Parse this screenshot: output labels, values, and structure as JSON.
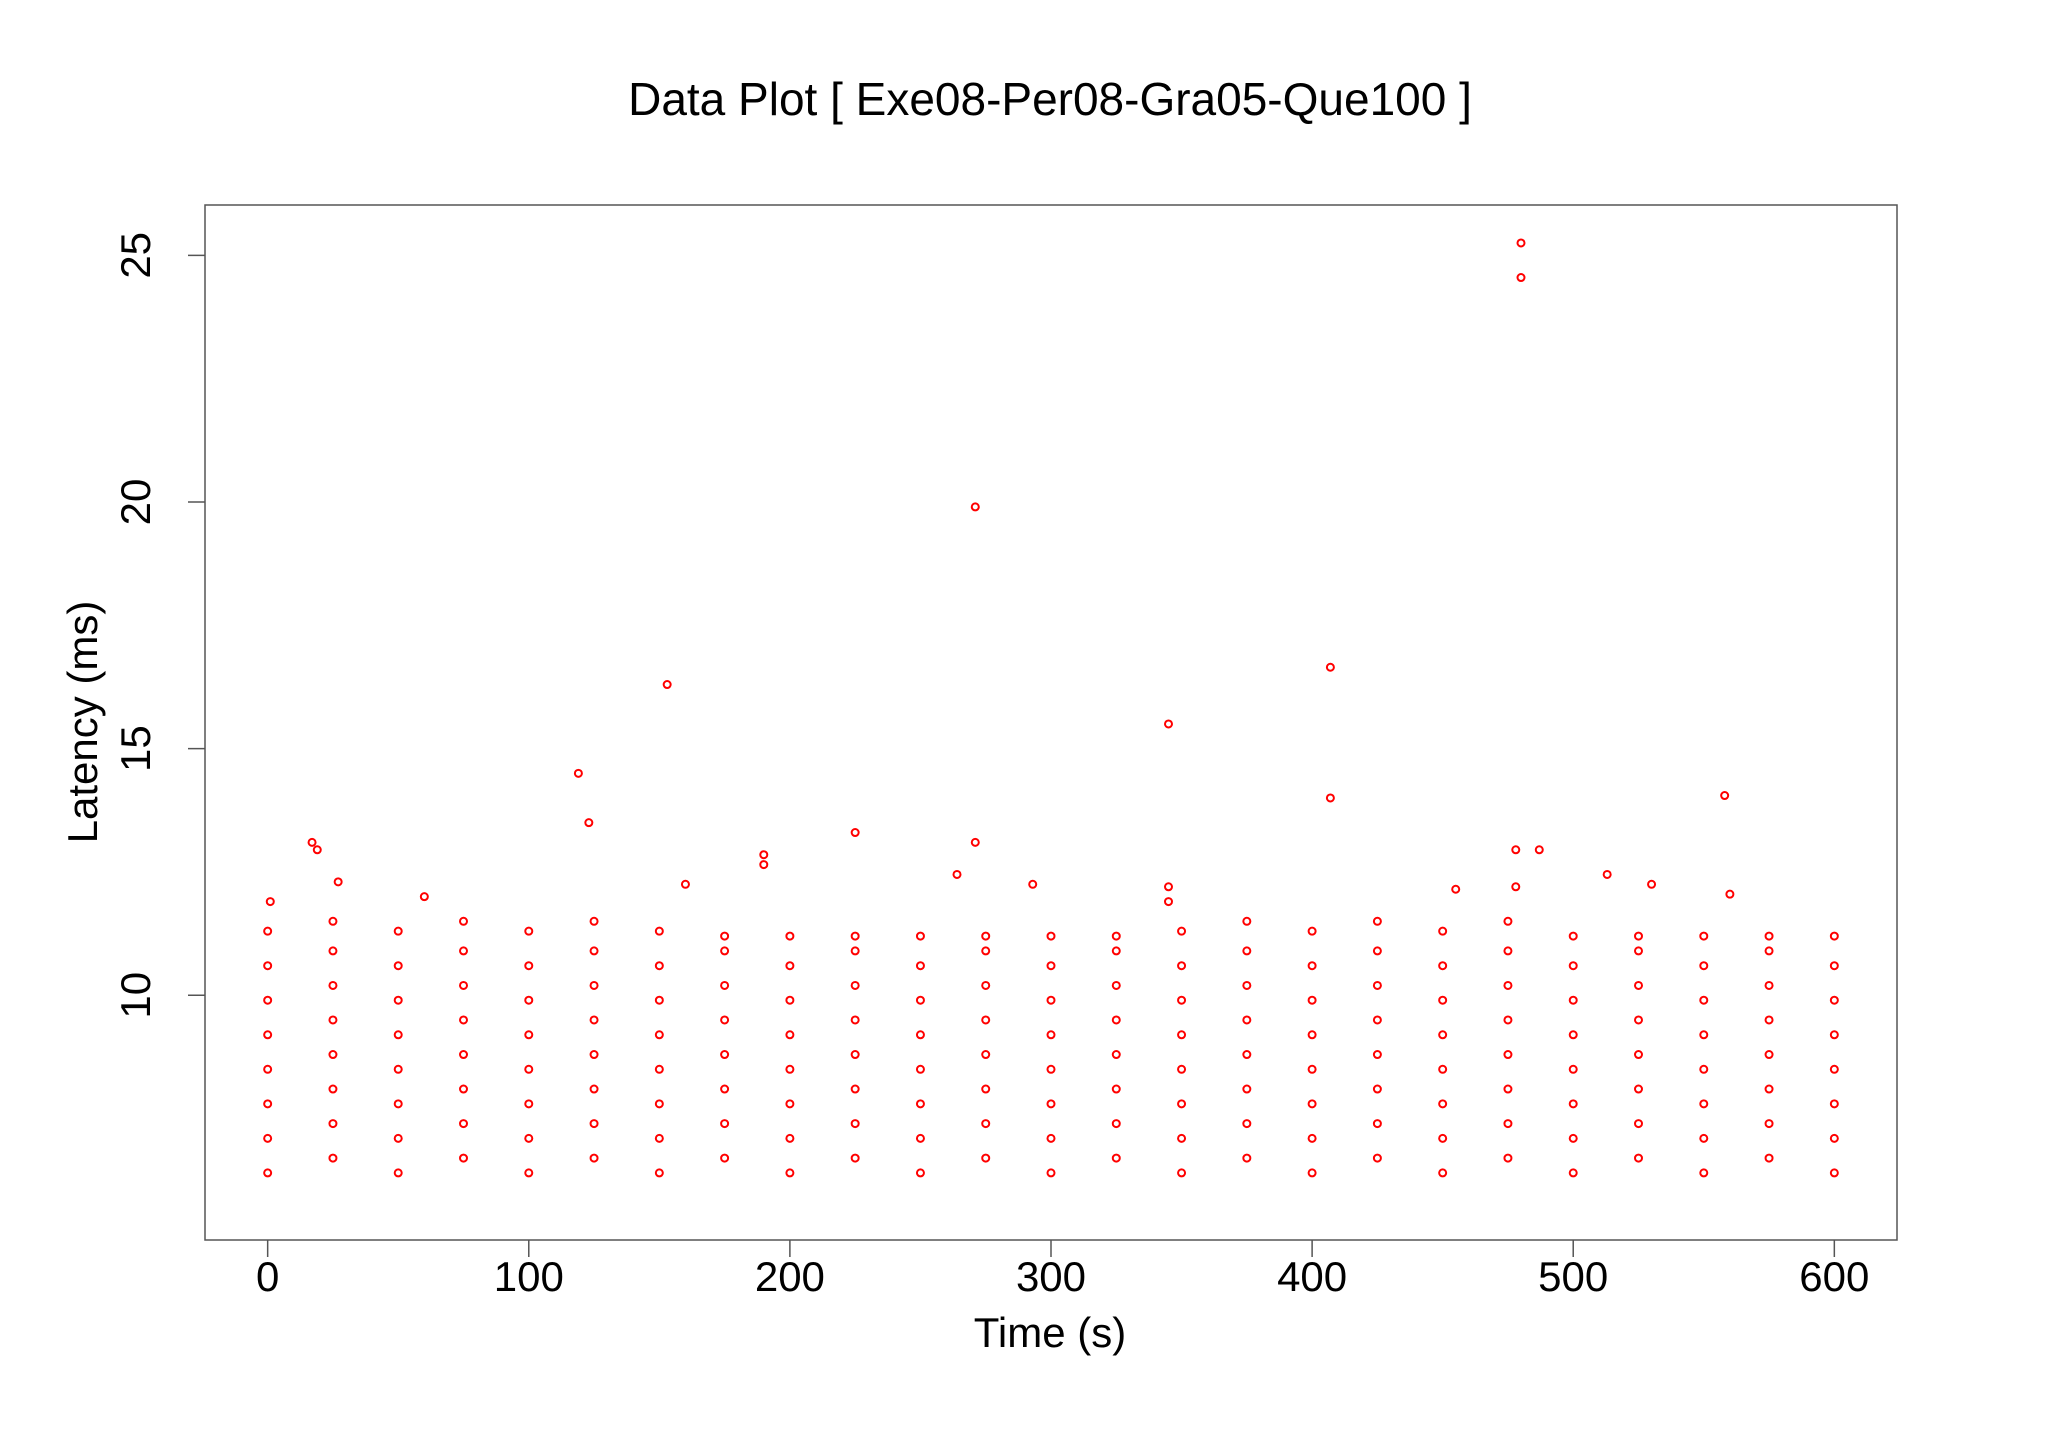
{
  "chart_data": {
    "type": "scatter",
    "title": "Data Plot [ Exe08-Per08-Gra05-Que100 ]",
    "x_label": "Time (s)",
    "y_label": "Latency (ms)",
    "color": "#ff0000",
    "xlim": [
      -24,
      624
    ],
    "ylim": [
      5.04,
      26.02
    ],
    "xticks": [
      0,
      100,
      200,
      300,
      400,
      500,
      600
    ],
    "yticks": [
      10,
      15,
      20,
      25
    ],
    "x": [
      0,
      0,
      0,
      0,
      0,
      0,
      0,
      0,
      25,
      25,
      25,
      25,
      25,
      25,
      25,
      25,
      50,
      50,
      50,
      50,
      50,
      50,
      50,
      50,
      75,
      75,
      75,
      75,
      75,
      75,
      75,
      75,
      100,
      100,
      100,
      100,
      100,
      100,
      100,
      100,
      125,
      125,
      125,
      125,
      125,
      125,
      125,
      125,
      150,
      150,
      150,
      150,
      150,
      150,
      150,
      150,
      175,
      175,
      175,
      175,
      175,
      175,
      175,
      175,
      200,
      200,
      200,
      200,
      200,
      200,
      200,
      200,
      225,
      225,
      225,
      225,
      225,
      225,
      225,
      225,
      250,
      250,
      250,
      250,
      250,
      250,
      250,
      250,
      275,
      275,
      275,
      275,
      275,
      275,
      275,
      275,
      300,
      300,
      300,
      300,
      300,
      300,
      300,
      300,
      325,
      325,
      325,
      325,
      325,
      325,
      325,
      325,
      350,
      350,
      350,
      350,
      350,
      350,
      350,
      350,
      375,
      375,
      375,
      375,
      375,
      375,
      375,
      375,
      400,
      400,
      400,
      400,
      400,
      400,
      400,
      400,
      425,
      425,
      425,
      425,
      425,
      425,
      425,
      425,
      450,
      450,
      450,
      450,
      450,
      450,
      450,
      450,
      475,
      475,
      475,
      475,
      475,
      475,
      475,
      475,
      500,
      500,
      500,
      500,
      500,
      500,
      500,
      500,
      525,
      525,
      525,
      525,
      525,
      525,
      525,
      525,
      550,
      550,
      550,
      550,
      550,
      550,
      550,
      550,
      575,
      575,
      575,
      575,
      575,
      575,
      575,
      575,
      600,
      600,
      600,
      600,
      600,
      600,
      600,
      600,
      1,
      17,
      19,
      27,
      60,
      119,
      123,
      153,
      160,
      190,
      190,
      225,
      264,
      271,
      271,
      293,
      345,
      345,
      345,
      407,
      407,
      455,
      478,
      478,
      480,
      480,
      487,
      513,
      530,
      558,
      560
    ],
    "values": [
      6.4,
      7.1,
      7.8,
      8.5,
      9.2,
      9.9,
      10.6,
      11.3,
      6.7,
      7.4,
      8.1,
      8.8,
      9.5,
      10.2,
      10.9,
      11.5,
      6.4,
      7.1,
      7.8,
      8.5,
      9.2,
      9.9,
      10.6,
      11.3,
      6.7,
      7.4,
      8.1,
      8.8,
      9.5,
      10.2,
      10.9,
      11.5,
      6.4,
      7.1,
      7.8,
      8.5,
      9.2,
      9.9,
      10.6,
      11.3,
      6.7,
      7.4,
      8.1,
      8.8,
      9.5,
      10.2,
      10.9,
      11.5,
      6.4,
      7.1,
      7.8,
      8.5,
      9.2,
      9.9,
      10.6,
      11.3,
      6.7,
      7.4,
      8.1,
      8.8,
      9.5,
      10.2,
      10.9,
      11.2,
      6.4,
      7.1,
      7.8,
      8.5,
      9.2,
      9.9,
      10.6,
      11.2,
      6.7,
      7.4,
      8.1,
      8.8,
      9.5,
      10.2,
      10.9,
      11.2,
      6.4,
      7.1,
      7.8,
      8.5,
      9.2,
      9.9,
      10.6,
      11.2,
      6.7,
      7.4,
      8.1,
      8.8,
      9.5,
      10.2,
      10.9,
      11.2,
      6.4,
      7.1,
      7.8,
      8.5,
      9.2,
      9.9,
      10.6,
      11.2,
      6.7,
      7.4,
      8.1,
      8.8,
      9.5,
      10.2,
      10.9,
      11.2,
      6.4,
      7.1,
      7.8,
      8.5,
      9.2,
      9.9,
      10.6,
      11.3,
      6.7,
      7.4,
      8.1,
      8.8,
      9.5,
      10.2,
      10.9,
      11.5,
      6.4,
      7.1,
      7.8,
      8.5,
      9.2,
      9.9,
      10.6,
      11.3,
      6.7,
      7.4,
      8.1,
      8.8,
      9.5,
      10.2,
      10.9,
      11.5,
      6.4,
      7.1,
      7.8,
      8.5,
      9.2,
      9.9,
      10.6,
      11.3,
      6.7,
      7.4,
      8.1,
      8.8,
      9.5,
      10.2,
      10.9,
      11.5,
      6.4,
      7.1,
      7.8,
      8.5,
      9.2,
      9.9,
      10.6,
      11.2,
      6.7,
      7.4,
      8.1,
      8.8,
      9.5,
      10.2,
      10.9,
      11.2,
      6.4,
      7.1,
      7.8,
      8.5,
      9.2,
      9.9,
      10.6,
      11.2,
      6.7,
      7.4,
      8.1,
      8.8,
      9.5,
      10.2,
      10.9,
      11.2,
      6.4,
      7.1,
      7.8,
      8.5,
      9.2,
      9.9,
      10.6,
      11.2,
      11.9,
      13.1,
      12.95,
      12.3,
      12.0,
      14.5,
      13.5,
      16.3,
      12.25,
      12.85,
      12.65,
      13.3,
      12.45,
      19.9,
      13.1,
      12.25,
      15.5,
      12.2,
      11.9,
      16.65,
      14.0,
      12.15,
      12.95,
      12.2,
      25.25,
      24.55,
      12.95,
      12.45,
      12.25,
      14.05,
      12.05
    ]
  }
}
